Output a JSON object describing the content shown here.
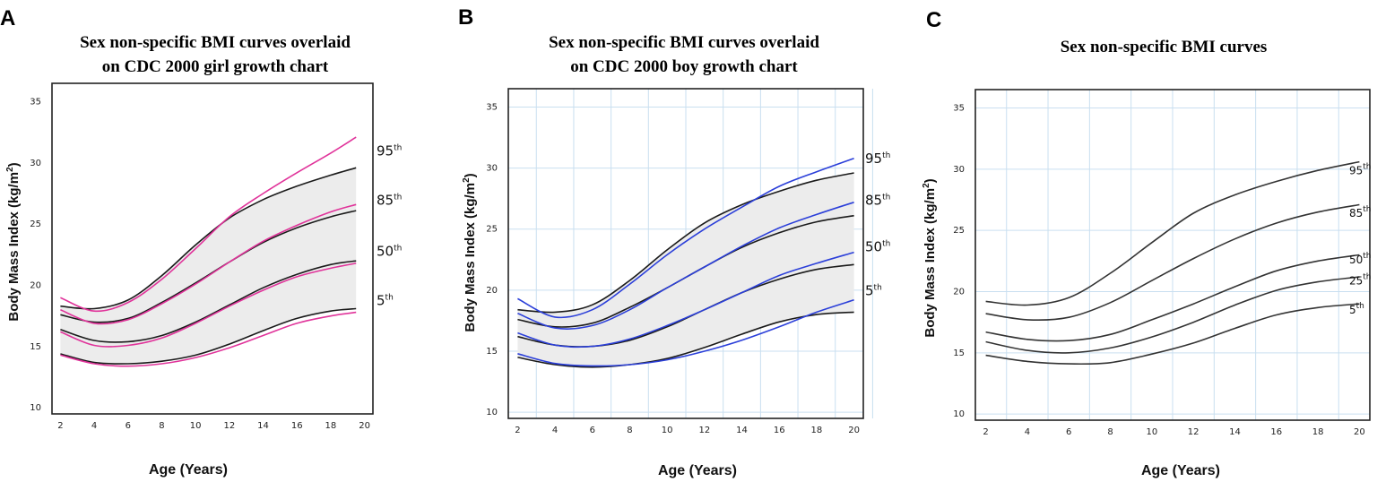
{
  "chart_data": [
    {
      "type": "line",
      "panel_label": "A",
      "title_lines": [
        "Sex non-specific BMI curves overlaid",
        "on CDC 2000 girl growth chart"
      ],
      "xlabel": "Age (Years)",
      "ylabel_main": "Body Mass Index (kg/m",
      "ylabel_sup": "2",
      "ylabel_end": ")",
      "xlim": [
        1.5,
        20.5
      ],
      "ylim": [
        9.5,
        36.5
      ],
      "x_ticks": [
        "2",
        "4",
        "6",
        "8",
        "10",
        "12",
        "14",
        "16",
        "18",
        "20"
      ],
      "y_ticks": [
        "10",
        "15",
        "20",
        "25",
        "30",
        "35"
      ],
      "x": [
        2,
        4,
        6,
        8,
        10,
        12,
        14,
        16,
        18,
        19.5
      ],
      "band": [
        "95th",
        "5th"
      ],
      "series": [
        {
          "name": "95th",
          "color": "#1a1a1a",
          "values": [
            18.3,
            18.1,
            18.8,
            20.8,
            23.3,
            25.5,
            27.0,
            28.1,
            29.0,
            29.6
          ]
        },
        {
          "name": "85th",
          "color": "#1a1a1a",
          "values": [
            17.6,
            17.0,
            17.3,
            18.6,
            20.2,
            21.9,
            23.5,
            24.7,
            25.6,
            26.1
          ]
        },
        {
          "name": "50th",
          "color": "#1a1a1a",
          "values": [
            16.4,
            15.5,
            15.4,
            15.9,
            17.0,
            18.4,
            19.8,
            20.9,
            21.7,
            22.0
          ]
        },
        {
          "name": "5th",
          "color": "#1a1a1a",
          "values": [
            14.4,
            13.7,
            13.6,
            13.8,
            14.3,
            15.2,
            16.3,
            17.3,
            17.9,
            18.1
          ]
        },
        {
          "name": "girl 95th",
          "color": "#e0339a",
          "values": [
            19.0,
            17.9,
            18.6,
            20.5,
            23.0,
            25.6,
            27.5,
            29.2,
            30.8,
            32.1
          ]
        },
        {
          "name": "girl 85th",
          "color": "#e0339a",
          "values": [
            18.0,
            16.9,
            17.2,
            18.5,
            20.1,
            21.9,
            23.6,
            24.9,
            26.0,
            26.6
          ]
        },
        {
          "name": "girl 50th",
          "color": "#e0339a",
          "values": [
            16.2,
            15.1,
            15.1,
            15.7,
            16.9,
            18.3,
            19.6,
            20.7,
            21.4,
            21.8
          ]
        },
        {
          "name": "girl 5th",
          "color": "#e0339a",
          "values": [
            14.3,
            13.6,
            13.4,
            13.6,
            14.1,
            14.9,
            15.9,
            16.9,
            17.5,
            17.8
          ]
        }
      ],
      "percentile_labels": [
        {
          "base": "95",
          "sup": "th",
          "value": 30.6
        },
        {
          "base": "85",
          "sup": "th",
          "value": 26.6
        },
        {
          "base": "50",
          "sup": "th",
          "value": 22.4
        },
        {
          "base": "5",
          "sup": "th",
          "value": 18.4
        }
      ]
    },
    {
      "type": "line",
      "panel_label": "B",
      "title_lines": [
        "Sex non-specific BMI curves overlaid",
        "on CDC 2000 boy growth chart"
      ],
      "xlabel": "Age (Years)",
      "ylabel_main": "Body Mass Index (kg/m",
      "ylabel_sup": "2",
      "ylabel_end": ")",
      "xlim": [
        1.5,
        20.5
      ],
      "ylim": [
        9.5,
        36.5
      ],
      "x_ticks": [
        "2",
        "4",
        "6",
        "8",
        "10",
        "12",
        "14",
        "16",
        "18",
        "20"
      ],
      "y_ticks": [
        "10",
        "15",
        "20",
        "25",
        "30",
        "35"
      ],
      "x": [
        2,
        4,
        6,
        8,
        10,
        12,
        14,
        16,
        18,
        20
      ],
      "band": [
        "95th",
        "5th"
      ],
      "series": [
        {
          "name": "95th",
          "color": "#1a1a1a",
          "values": [
            18.4,
            18.2,
            18.8,
            20.8,
            23.3,
            25.5,
            27.0,
            28.1,
            29.0,
            29.6
          ]
        },
        {
          "name": "85th",
          "color": "#1a1a1a",
          "values": [
            17.6,
            17.0,
            17.3,
            18.6,
            20.2,
            21.9,
            23.5,
            24.7,
            25.6,
            26.1
          ]
        },
        {
          "name": "50th",
          "color": "#1a1a1a",
          "values": [
            16.2,
            15.5,
            15.4,
            15.9,
            17.0,
            18.4,
            19.8,
            20.9,
            21.7,
            22.1
          ]
        },
        {
          "name": "5th",
          "color": "#1a1a1a",
          "values": [
            14.5,
            13.9,
            13.7,
            13.9,
            14.4,
            15.3,
            16.4,
            17.4,
            18.0,
            18.2
          ]
        },
        {
          "name": "boy 95th",
          "color": "#2b3fd9",
          "values": [
            19.3,
            17.8,
            18.4,
            20.5,
            22.9,
            25.0,
            26.8,
            28.5,
            29.7,
            30.8
          ]
        },
        {
          "name": "boy 85th",
          "color": "#2b3fd9",
          "values": [
            18.1,
            16.9,
            17.1,
            18.4,
            20.2,
            21.9,
            23.6,
            25.1,
            26.2,
            27.2
          ]
        },
        {
          "name": "boy 50th",
          "color": "#2b3fd9",
          "values": [
            16.5,
            15.5,
            15.4,
            16.0,
            17.1,
            18.4,
            19.8,
            21.2,
            22.2,
            23.1
          ]
        },
        {
          "name": "boy 5th",
          "color": "#2b3fd9",
          "values": [
            14.8,
            14.0,
            13.8,
            13.9,
            14.3,
            15.0,
            15.9,
            17.0,
            18.2,
            19.2
          ]
        }
      ],
      "percentile_labels": [
        {
          "base": "95",
          "sup": "th",
          "value": 30.4
        },
        {
          "base": "85",
          "sup": "th",
          "value": 27.0
        },
        {
          "base": "50",
          "sup": "th",
          "value": 23.2
        },
        {
          "base": "5",
          "sup": "th",
          "value": 19.6
        }
      ]
    },
    {
      "type": "line",
      "panel_label": "C",
      "title_lines": [
        "Sex non-specific BMI curves"
      ],
      "xlabel": "Age (Years)",
      "ylabel_main": "Body Mass Index (kg/m",
      "ylabel_sup": "2",
      "ylabel_end": ")",
      "xlim": [
        1.5,
        20.5
      ],
      "ylim": [
        9.5,
        36.5
      ],
      "x_ticks": [
        "2",
        "4",
        "6",
        "8",
        "10",
        "12",
        "14",
        "16",
        "18",
        "20"
      ],
      "y_ticks": [
        "10",
        "15",
        "20",
        "25",
        "30",
        "35"
      ],
      "x": [
        2,
        4,
        6,
        8,
        10,
        12,
        14,
        16,
        18,
        20
      ],
      "band": [],
      "series": [
        {
          "name": "95th",
          "color": "#333333",
          "values": [
            19.2,
            18.9,
            19.5,
            21.5,
            24.0,
            26.4,
            27.9,
            29.0,
            29.9,
            30.6
          ]
        },
        {
          "name": "85th",
          "color": "#333333",
          "values": [
            18.2,
            17.7,
            17.9,
            19.1,
            20.9,
            22.7,
            24.3,
            25.6,
            26.5,
            27.1
          ]
        },
        {
          "name": "50th",
          "color": "#333333",
          "values": [
            16.7,
            16.1,
            16.0,
            16.5,
            17.7,
            19.0,
            20.4,
            21.7,
            22.5,
            23.0
          ]
        },
        {
          "name": "25th",
          "color": "#333333",
          "values": [
            15.9,
            15.2,
            15.0,
            15.4,
            16.3,
            17.5,
            18.9,
            20.1,
            20.8,
            21.2
          ]
        },
        {
          "name": "5th",
          "color": "#333333",
          "values": [
            14.8,
            14.3,
            14.1,
            14.2,
            14.9,
            15.8,
            17.0,
            18.1,
            18.7,
            19.0
          ]
        }
      ],
      "percentile_labels": [
        {
          "base": "95",
          "sup": "th",
          "value": 29.6
        },
        {
          "base": "85",
          "sup": "th",
          "value": 26.1
        },
        {
          "base": "50",
          "sup": "th",
          "value": 22.3
        },
        {
          "base": "25",
          "sup": "th",
          "value": 20.6
        },
        {
          "base": "5",
          "sup": "th",
          "value": 18.2
        }
      ]
    }
  ]
}
